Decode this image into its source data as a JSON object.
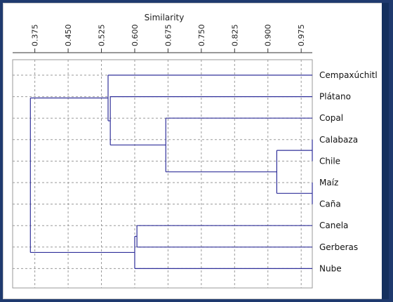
{
  "chart_data": {
    "type": "dendrogram",
    "title": "",
    "xlabel": "Similarity",
    "xlim": [
      0.325,
      1.0
    ],
    "ticks": [
      "0.375",
      "0.450",
      "0.525",
      "0.600",
      "0.675",
      "0.750",
      "0.825",
      "0.900",
      "0.975"
    ],
    "grid": true,
    "leaves": [
      "Cempaxúchitl",
      "Plátano",
      "Copal",
      "Calabaza",
      "Chile",
      "Maíz",
      "Caña",
      "Canela",
      "Gerberas",
      "Nube"
    ],
    "merges": [
      {
        "a": "Calabaza",
        "b": "Chile",
        "similarity": 1.0
      },
      {
        "a": "Maíz",
        "b": "Caña",
        "similarity": 1.0
      },
      {
        "a": "Calabaza+Chile",
        "b": "Maíz+Caña",
        "similarity": 0.92
      },
      {
        "a": "Copal",
        "b": "Calabaza+Chile+Maíz+Caña",
        "similarity": 0.67
      },
      {
        "a": "Plátano",
        "b": "Copal+Calabaza+Chile+Maíz+Caña",
        "similarity": 0.545
      },
      {
        "a": "Cempaxúchitl",
        "b": "Plátano+Copal+Calabaza+Chile+Maíz+Caña",
        "similarity": 0.54
      },
      {
        "a": "Canela",
        "b": "Gerberas",
        "similarity": 0.605
      },
      {
        "a": "Canela+Gerberas",
        "b": "Nube",
        "similarity": 0.6
      },
      {
        "a": "Cempaxúchitl+Plátano+Copal+Calabaza+Chile+Maíz+Caña",
        "b": "Canela+Gerberas+Nube",
        "similarity": 0.365
      }
    ],
    "colors": {
      "tree": "#30309a",
      "grid": "#9a9a9a",
      "axis": "#333333"
    }
  }
}
